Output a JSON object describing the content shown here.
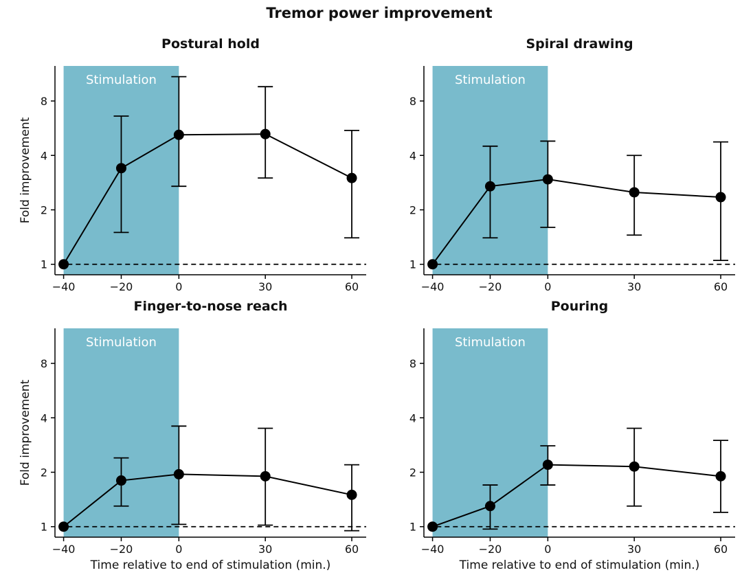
{
  "title": "Tremor power improvement",
  "colors": {
    "stimulation": "#79bbcc",
    "line": "#000000",
    "baseline": "#000000"
  },
  "chart_data": [
    {
      "type": "line",
      "title": "Postural hold",
      "ylabel": "Fold improvement",
      "xlabel": "",
      "y_scale": "log2",
      "ylim": [
        0.875,
        12.5
      ],
      "xlim": [
        -43,
        65
      ],
      "x_ticks": [
        -40,
        -20,
        0,
        30,
        60
      ],
      "x_tick_labels": [
        "−40",
        "−20",
        "0",
        "30",
        "60"
      ],
      "y_ticks": [
        1,
        2,
        4,
        8
      ],
      "shaded_region": {
        "label": "Stimulation",
        "x_start": -40,
        "x_end": 0
      },
      "baseline": 1,
      "points": [
        {
          "x": -40,
          "y": 1.0
        },
        {
          "x": -20,
          "y": 3.4,
          "y_low": 1.5,
          "y_high": 6.6
        },
        {
          "x": 0,
          "y": 5.2,
          "y_low": 2.7,
          "y_high": 10.9
        },
        {
          "x": 30,
          "y": 5.25,
          "y_low": 3.0,
          "y_high": 9.6
        },
        {
          "x": 60,
          "y": 3.0,
          "y_low": 1.4,
          "y_high": 5.5
        }
      ]
    },
    {
      "type": "line",
      "title": "Spiral drawing",
      "ylabel": "",
      "xlabel": "",
      "y_scale": "log2",
      "ylim": [
        0.875,
        12.5
      ],
      "xlim": [
        -43,
        65
      ],
      "x_ticks": [
        -40,
        -20,
        0,
        30,
        60
      ],
      "x_tick_labels": [
        "−40",
        "−20",
        "0",
        "30",
        "60"
      ],
      "y_ticks": [
        1,
        2,
        4,
        8
      ],
      "shaded_region": {
        "label": "Stimulation",
        "x_start": -40,
        "x_end": 0
      },
      "baseline": 1,
      "points": [
        {
          "x": -40,
          "y": 1.0
        },
        {
          "x": -20,
          "y": 2.7,
          "y_low": 1.4,
          "y_high": 4.5
        },
        {
          "x": 0,
          "y": 2.95,
          "y_low": 1.6,
          "y_high": 4.8
        },
        {
          "x": 30,
          "y": 2.5,
          "y_low": 1.45,
          "y_high": 4.0
        },
        {
          "x": 60,
          "y": 2.35,
          "y_low": 1.05,
          "y_high": 4.75
        }
      ]
    },
    {
      "type": "line",
      "title": "Finger-to-nose reach",
      "ylabel": "Fold improvement",
      "xlabel": "Time relative to end of stimulation (min.)",
      "y_scale": "log2",
      "ylim": [
        0.875,
        12.5
      ],
      "xlim": [
        -43,
        65
      ],
      "x_ticks": [
        -40,
        -20,
        0,
        30,
        60
      ],
      "x_tick_labels": [
        "−40",
        "−20",
        "0",
        "30",
        "60"
      ],
      "y_ticks": [
        1,
        2,
        4,
        8
      ],
      "shaded_region": {
        "label": "Stimulation",
        "x_start": -40,
        "x_end": 0
      },
      "baseline": 1,
      "points": [
        {
          "x": -40,
          "y": 1.0
        },
        {
          "x": -20,
          "y": 1.8,
          "y_low": 1.3,
          "y_high": 2.4
        },
        {
          "x": 0,
          "y": 1.95,
          "y_low": 1.03,
          "y_high": 3.6
        },
        {
          "x": 30,
          "y": 1.9,
          "y_low": 1.02,
          "y_high": 3.5
        },
        {
          "x": 60,
          "y": 1.5,
          "y_low": 0.95,
          "y_high": 2.2
        }
      ]
    },
    {
      "type": "line",
      "title": "Pouring",
      "ylabel": "",
      "xlabel": "Time relative to end of stimulation (min.)",
      "y_scale": "log2",
      "ylim": [
        0.875,
        12.5
      ],
      "xlim": [
        -43,
        65
      ],
      "x_ticks": [
        -40,
        -20,
        0,
        30,
        60
      ],
      "x_tick_labels": [
        "−40",
        "−20",
        "0",
        "30",
        "60"
      ],
      "y_ticks": [
        1,
        2,
        4,
        8
      ],
      "shaded_region": {
        "label": "Stimulation",
        "x_start": -40,
        "x_end": 0
      },
      "baseline": 1,
      "points": [
        {
          "x": -40,
          "y": 1.0
        },
        {
          "x": -20,
          "y": 1.3,
          "y_low": 0.97,
          "y_high": 1.7
        },
        {
          "x": 0,
          "y": 2.2,
          "y_low": 1.7,
          "y_high": 2.8
        },
        {
          "x": 30,
          "y": 2.15,
          "y_low": 1.3,
          "y_high": 3.5
        },
        {
          "x": 60,
          "y": 1.9,
          "y_low": 1.2,
          "y_high": 3.0
        }
      ]
    }
  ]
}
